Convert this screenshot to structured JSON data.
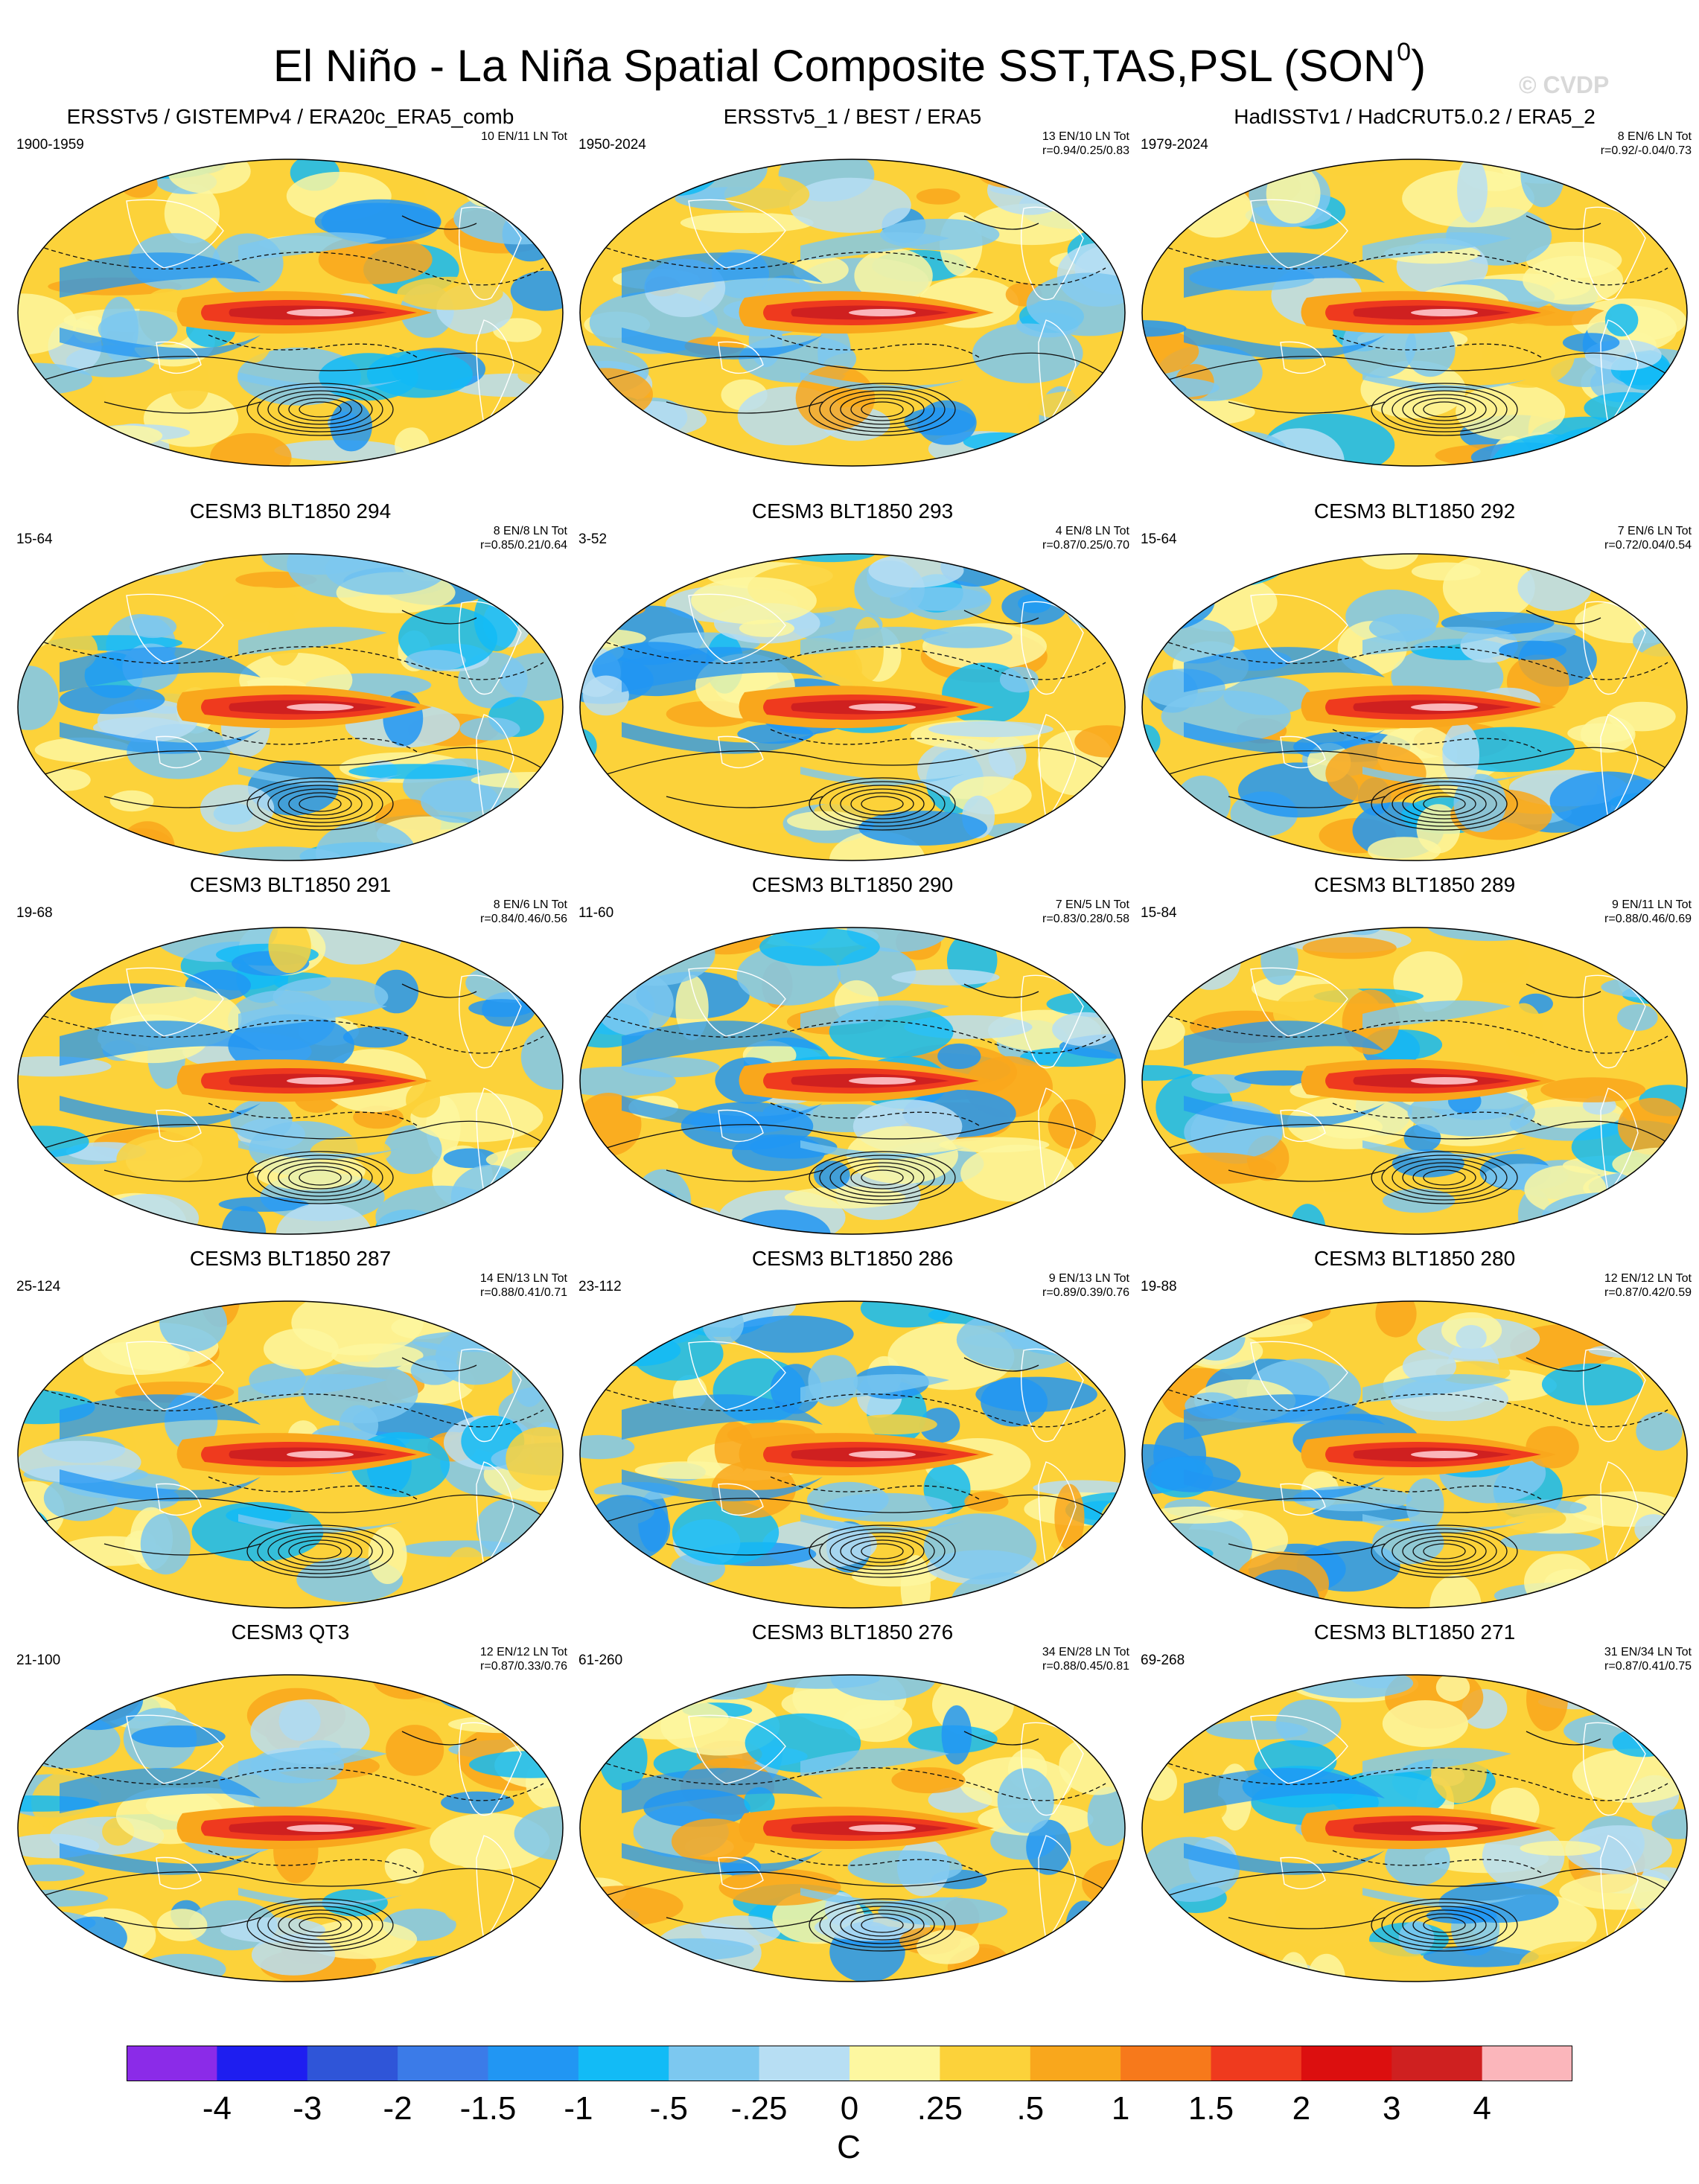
{
  "title": "El Niño - La Niña Spatial Composite SST,TAS,PSL (SON",
  "title_superscript": "0",
  "title_close": ")",
  "watermark": "© CVDP",
  "panels": [
    {
      "title": "ERSSTv5 / GISTEMPv4 / ERA20c_ERA5_comb",
      "period": "1900-1959",
      "events": "10 EN/11 LN Tot",
      "r": ""
    },
    {
      "title": "ERSSTv5_1 / BEST / ERA5",
      "period": "1950-2024",
      "events": "13 EN/10 LN Tot",
      "r": "r=0.94/0.25/0.83"
    },
    {
      "title": "HadISSTv1 / HadCRUT5.0.2 / ERA5_2",
      "period": "1979-2024",
      "events": "8 EN/6 LN Tot",
      "r": "r=0.92/-0.04/0.73"
    },
    {
      "title": "CESM3 BLT1850 294",
      "period": "15-64",
      "events": "8 EN/8 LN Tot",
      "r": "r=0.85/0.21/0.64"
    },
    {
      "title": "CESM3 BLT1850 293",
      "period": "3-52",
      "events": "4 EN/8 LN Tot",
      "r": "r=0.87/0.25/0.70"
    },
    {
      "title": "CESM3 BLT1850 292",
      "period": "15-64",
      "events": "7 EN/6 LN Tot",
      "r": "r=0.72/0.04/0.54"
    },
    {
      "title": "CESM3 BLT1850 291",
      "period": "19-68",
      "events": "8 EN/6 LN Tot",
      "r": "r=0.84/0.46/0.56"
    },
    {
      "title": "CESM3 BLT1850 290",
      "period": "11-60",
      "events": "7 EN/5 LN Tot",
      "r": "r=0.83/0.28/0.58"
    },
    {
      "title": "CESM3 BLT1850 289",
      "period": "15-84",
      "events": "9 EN/11 LN Tot",
      "r": "r=0.88/0.46/0.69"
    },
    {
      "title": "CESM3 BLT1850 287",
      "period": "25-124",
      "events": "14 EN/13 LN Tot",
      "r": "r=0.88/0.41/0.71"
    },
    {
      "title": "CESM3 BLT1850 286",
      "period": "23-112",
      "events": "9 EN/13 LN Tot",
      "r": "r=0.89/0.39/0.76"
    },
    {
      "title": "CESM3 BLT1850 280",
      "period": "19-88",
      "events": "12 EN/12 LN Tot",
      "r": "r=0.87/0.42/0.59"
    },
    {
      "title": "CESM3 QT3",
      "period": "21-100",
      "events": "12 EN/12 LN Tot",
      "r": "r=0.87/0.33/0.76"
    },
    {
      "title": "CESM3 BLT1850 276",
      "period": "61-260",
      "events": "34 EN/28 LN Tot",
      "r": "r=0.88/0.45/0.81"
    },
    {
      "title": "CESM3 BLT1850 271",
      "period": "69-268",
      "events": "31 EN/34 LN Tot",
      "r": "r=0.87/0.41/0.75"
    }
  ],
  "colorbar": {
    "colors": [
      "#8b2be8",
      "#1e1ef0",
      "#2f55d8",
      "#3b7be8",
      "#2196f3",
      "#12bbf6",
      "#7cc8f0",
      "#b7def3",
      "#fdf7a0",
      "#fcd23a",
      "#f9a71c",
      "#f7791b",
      "#ef3a1e",
      "#dc0f0f",
      "#cf2020",
      "#fbb6bb"
    ],
    "labels": [
      "-4",
      "-3",
      "-2",
      "-1.5",
      "-1",
      "-.5",
      "-.25",
      "0",
      ".25",
      ".5",
      "1",
      "1.5",
      "2",
      "3",
      "4"
    ],
    "units": "C"
  }
}
